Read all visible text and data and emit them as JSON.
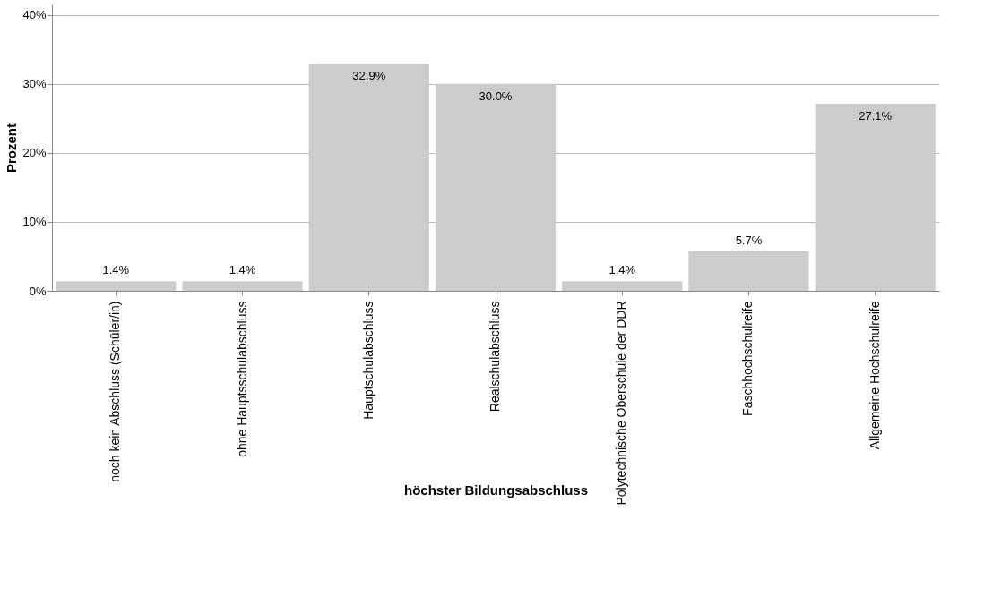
{
  "chart_data": {
    "type": "bar",
    "xlabel": "höchster Bildungsabschluss",
    "ylabel": "Prozent",
    "categories": [
      "noch kein Abschluss (Schüler/in)",
      "ohne Hauptsschulabschluss",
      "Hauptschulabschluss",
      "Realschulabschluss",
      "Polytechnische Oberschule der DDR",
      "Faschhochschulreife",
      "Allgemeine Hochschulreife"
    ],
    "values": [
      1.4,
      1.4,
      32.9,
      30.0,
      1.4,
      5.7,
      27.1
    ],
    "value_labels": [
      "1.4%",
      "1.4%",
      "32.9%",
      "30.0%",
      "1.4%",
      "5.7%",
      "27.1%"
    ],
    "color": "#cccccc",
    "ylim": [
      0,
      41.5
    ],
    "yticks": [
      {
        "value": 0,
        "label": "0%"
      },
      {
        "value": 10,
        "label": "10%"
      },
      {
        "value": 20,
        "label": "20%"
      },
      {
        "value": 30,
        "label": "30%"
      },
      {
        "value": 40,
        "label": "40%"
      }
    ],
    "grid": "y"
  }
}
